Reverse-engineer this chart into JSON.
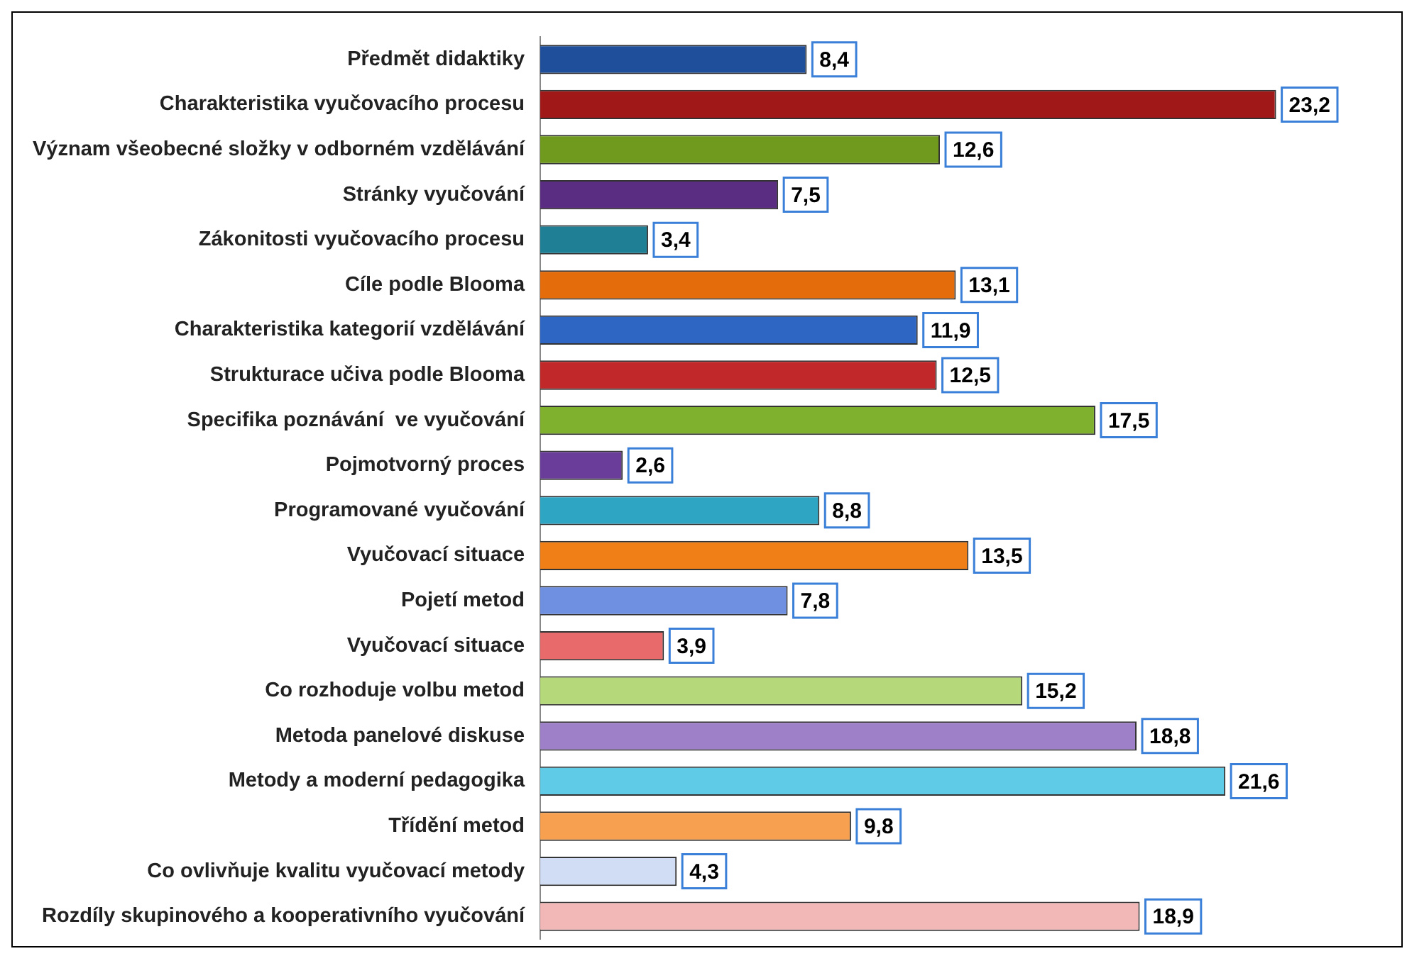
{
  "chart_data": {
    "type": "bar",
    "orientation": "horizontal",
    "categories": [
      "Předmět didaktiky",
      "Charakteristika vyučovacího procesu",
      "Význam všeobecné složky v odborném vzdělávání",
      "Stránky vyučování",
      "Zákonitosti vyučovacího procesu",
      "Cíle podle Blooma",
      "Charakteristika kategorií vzdělávání",
      "Strukturace učiva podle Blooma",
      "Specifika poznávání  ve vyučování",
      "Pojmotvorný proces",
      "Programované vyučování",
      "Vyučovací situace",
      "Pojetí metod",
      "Vyučovací situace",
      "Co rozhoduje volbu metod",
      "Metoda panelové diskuse",
      "Metody a moderní pedagogika",
      "Třídění metod",
      "Co ovlivňuje kvalitu vyučovací metody",
      "Rozdíly skupinového a kooperativního vyučování"
    ],
    "values": [
      8.4,
      23.2,
      12.6,
      7.5,
      3.4,
      13.1,
      11.9,
      12.5,
      17.5,
      2.6,
      8.8,
      13.5,
      7.8,
      3.9,
      15.2,
      18.8,
      21.6,
      9.8,
      4.3,
      18.9
    ],
    "value_labels": [
      "8,4",
      "23,2",
      "12,6",
      "7,5",
      "3,4",
      "13,1",
      "11,9",
      "12,5",
      "17,5",
      "2,6",
      "8,8",
      "13,5",
      "7,8",
      "3,9",
      "15,2",
      "18,8",
      "21,6",
      "9,8",
      "4,3",
      "18,9"
    ],
    "colors": [
      "#1f4e9a",
      "#a01818",
      "#6f9a1e",
      "#5a2d82",
      "#1f7f95",
      "#e46c0a",
      "#2e66c4",
      "#c0282a",
      "#7fb02e",
      "#6a3d9a",
      "#2fa5c4",
      "#f07f18",
      "#6f8fe0",
      "#e86a6a",
      "#b5d87a",
      "#9e80c8",
      "#5fcbe6",
      "#f6a050",
      "#d0ddf5",
      "#f2b8b8"
    ],
    "grid": false,
    "legend": false
  }
}
